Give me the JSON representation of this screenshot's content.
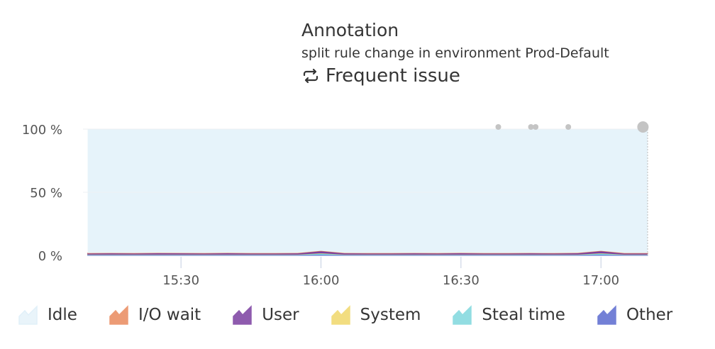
{
  "annotation": {
    "title": "Annotation",
    "description": "split rule change in environment Prod-Default",
    "issue_label": "Frequent issue",
    "issue_icon": "repeat-icon"
  },
  "chart_data": {
    "type": "area",
    "stacked": true,
    "x_unit": "time",
    "xlim": [
      "15:09",
      "17:10"
    ],
    "ylim": [
      0,
      100
    ],
    "y_ticks": [
      "0 %",
      "50 %",
      "100 %"
    ],
    "x_ticks": [
      "15:30",
      "16:00",
      "16:30",
      "17:00"
    ],
    "grid": true,
    "legend_position": "bottom",
    "x": [
      "15:10",
      "15:15",
      "15:20",
      "15:25",
      "15:30",
      "15:35",
      "15:40",
      "15:45",
      "15:50",
      "15:55",
      "16:00",
      "16:05",
      "16:10",
      "16:15",
      "16:20",
      "16:25",
      "16:30",
      "16:35",
      "16:40",
      "16:45",
      "16:50",
      "16:55",
      "17:00",
      "17:05",
      "17:10"
    ],
    "series": [
      {
        "name": "Other",
        "color": "#5b6acf",
        "values": [
          0.5,
          0.5,
          0.5,
          0.5,
          0.5,
          0.5,
          0.5,
          0.5,
          0.5,
          0.5,
          0.6,
          0.5,
          0.5,
          0.5,
          0.5,
          0.5,
          0.5,
          0.5,
          0.5,
          0.5,
          0.5,
          0.5,
          0.6,
          0.5,
          0.5
        ]
      },
      {
        "name": "Steal time",
        "color": "#7fd8de",
        "values": [
          0.2,
          0.2,
          0.2,
          0.2,
          0.2,
          0.2,
          0.2,
          0.2,
          0.2,
          0.2,
          1.0,
          0.2,
          0.2,
          0.2,
          0.2,
          0.2,
          0.2,
          0.2,
          0.2,
          0.2,
          0.2,
          0.2,
          1.0,
          0.2,
          0.2
        ]
      },
      {
        "name": "System",
        "color": "#f0d86a",
        "values": [
          0.2,
          0.2,
          0.2,
          0.2,
          0.2,
          0.2,
          0.2,
          0.2,
          0.2,
          0.2,
          0.3,
          0.2,
          0.2,
          0.2,
          0.2,
          0.2,
          0.2,
          0.2,
          0.2,
          0.2,
          0.2,
          0.2,
          0.3,
          0.2,
          0.2
        ]
      },
      {
        "name": "User",
        "color": "#7b3fa0",
        "values": [
          0.8,
          0.9,
          0.8,
          1.0,
          0.9,
          0.8,
          1.0,
          0.8,
          0.8,
          0.9,
          1.6,
          0.9,
          0.8,
          0.8,
          0.9,
          0.8,
          1.0,
          0.8,
          0.8,
          0.9,
          0.8,
          1.0,
          1.6,
          0.8,
          0.8
        ]
      },
      {
        "name": "I/O wait",
        "color": "#e98a5e",
        "values": [
          0.1,
          0.1,
          0.1,
          0.1,
          0.1,
          0.1,
          0.1,
          0.1,
          0.1,
          0.1,
          0.1,
          0.1,
          0.1,
          0.1,
          0.1,
          0.1,
          0.1,
          0.1,
          0.1,
          0.1,
          0.1,
          0.1,
          0.1,
          0.1,
          0.1
        ]
      },
      {
        "name": "Idle",
        "color": "#e6f3fa",
        "values": [
          98.2,
          98.1,
          98.2,
          98.0,
          98.1,
          98.2,
          98.0,
          98.2,
          98.2,
          98.1,
          96.4,
          98.1,
          98.2,
          98.2,
          98.1,
          98.2,
          98.0,
          98.2,
          98.2,
          98.1,
          98.2,
          98.0,
          96.4,
          98.2,
          98.2
        ]
      }
    ],
    "annotation_markers": [
      "16:38",
      "16:45",
      "16:46",
      "16:53",
      "17:09"
    ]
  },
  "legend": [
    {
      "label": "Idle",
      "color": "#e6f3fa"
    },
    {
      "label": "I/O wait",
      "color": "#e98a5e"
    },
    {
      "label": "User",
      "color": "#7b3fa0"
    },
    {
      "label": "System",
      "color": "#f0d86a"
    },
    {
      "label": "Steal time",
      "color": "#7fd8de"
    },
    {
      "label": "Other",
      "color": "#5b6acf"
    }
  ]
}
